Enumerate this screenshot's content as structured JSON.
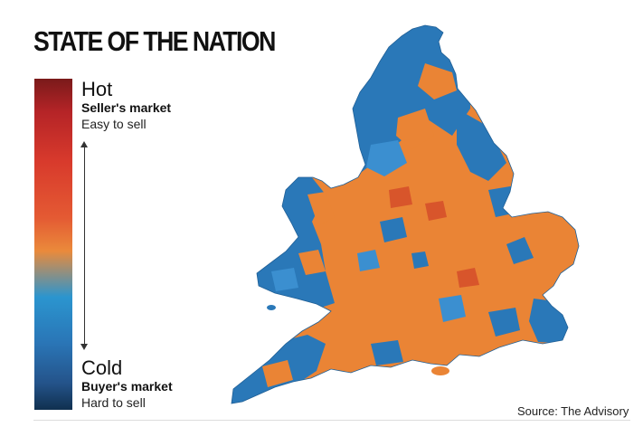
{
  "title": "STATE OF THE NATION",
  "legend": {
    "hot": {
      "label": "Hot",
      "market": "Seller's market",
      "desc": "Easy to sell"
    },
    "cold": {
      "label": "Cold",
      "market": "Buyer's market",
      "desc": "Hard to sell"
    },
    "scale_colors": [
      "#7a1a1a",
      "#b52427",
      "#d83a2c",
      "#e45a33",
      "#ea8a3b",
      "#2b95cf",
      "#2a75b6",
      "#24538a",
      "#10304f"
    ]
  },
  "map": {
    "region": "England and Wales",
    "colors": {
      "hot_fill": "#ea8435",
      "hot_dark": "#d8552b",
      "cold_fill": "#2a78b8",
      "cold_light": "#3b8fd0"
    }
  },
  "source": "Source: The Advisory"
}
